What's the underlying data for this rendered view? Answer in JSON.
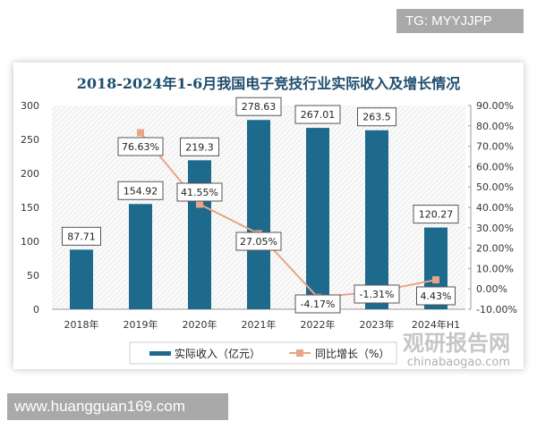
{
  "watermark_top": "TG: MYYJJPP",
  "watermark_bottom": "www.huangguan169.com",
  "logo": {
    "cn": "观研报告网",
    "en": "chinabaogao.com"
  },
  "chart_data": {
    "type": "bar+line",
    "title": "2018-2024年1-6月我国电子竞技行业实际收入及增长情况",
    "categories": [
      "2018年",
      "2019年",
      "2020年",
      "2021年",
      "2022年",
      "2023年",
      "2024年H1"
    ],
    "series": [
      {
        "name": "实际收入（亿元）",
        "type": "bar",
        "axis": "left",
        "color": "#1e6a8d",
        "values": [
          87.71,
          154.92,
          219.3,
          278.63,
          267.01,
          263.5,
          120.27
        ],
        "labels": [
          "87.71",
          "154.92",
          "219.3",
          "278.63",
          "267.01",
          "263.5",
          "120.27"
        ]
      },
      {
        "name": "同比增长（%）",
        "type": "line",
        "axis": "right",
        "color": "#e8a587",
        "values": [
          null,
          76.63,
          41.55,
          27.05,
          -4.17,
          -1.31,
          4.43
        ],
        "labels": [
          "",
          "76.63%",
          "41.55%",
          "27.05%",
          "-4.17%",
          "-1.31%",
          "4.43%"
        ]
      }
    ],
    "ylim_left": [
      0,
      300
    ],
    "yticks_left": [
      "0",
      "50",
      "100",
      "150",
      "200",
      "250",
      "300"
    ],
    "ylim_right": [
      -10,
      90
    ],
    "yticks_right": [
      "-10.00%",
      "0.00%",
      "10.00%",
      "20.00%",
      "30.00%",
      "40.00%",
      "50.00%",
      "60.00%",
      "70.00%",
      "80.00%",
      "90.00%"
    ],
    "legend": "bottom",
    "grid": false
  }
}
